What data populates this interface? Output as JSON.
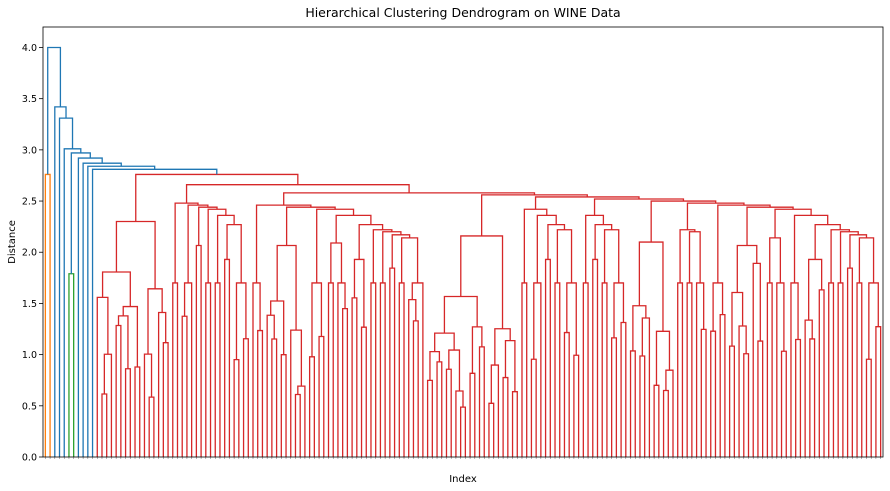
{
  "chart_data": {
    "type": "dendrogram",
    "title": "Hierarchical Clustering Dendrogram on WINE Data",
    "xlabel": "Index",
    "ylabel": "Distance",
    "ylim": [
      0,
      4.2
    ],
    "yticks": [
      "0.0",
      "0.5",
      "1.0",
      "1.5",
      "2.0",
      "2.5",
      "3.0",
      "3.5",
      "4.0"
    ],
    "leaf_count": 178,
    "cluster_colors": {
      "orange": "#ff7f0e",
      "green": "#2ca02c",
      "red": "#d62728",
      "above_threshold": "#1f77b4"
    },
    "top_merges": [
      4.0,
      3.9,
      3.86,
      3.64,
      3.42,
      3.31,
      3.01,
      2.97,
      2.92,
      2.86,
      2.83,
      2.81
    ],
    "red_cluster_merges": [
      2.76,
      2.66,
      2.58,
      2.54,
      2.53,
      2.52,
      2.47,
      2.45,
      2.44,
      2.43,
      2.42,
      2.36,
      2.27,
      2.22,
      2.2,
      2.17,
      2.14,
      2.09,
      2.06,
      2.04,
      2.02,
      1.99,
      1.98,
      1.97,
      1.96,
      1.93,
      1.85,
      1.82,
      1.77,
      1.75,
      1.73,
      1.7,
      1.64,
      1.6,
      1.59,
      1.57,
      1.55,
      1.5,
      1.46,
      1.42,
      1.38,
      1.36,
      1.3,
      1.26,
      1.2
    ],
    "small_clusters": {
      "orange_merge": 2.76,
      "green_merge": 1.79
    }
  }
}
